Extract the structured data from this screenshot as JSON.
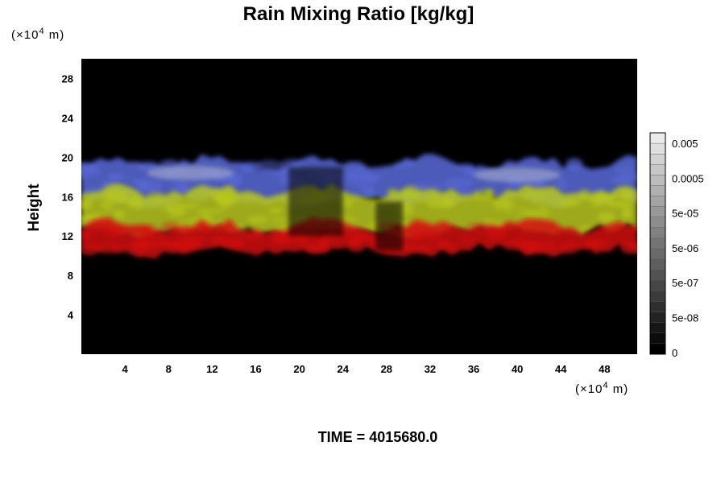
{
  "chart_data": {
    "type": "heatmap",
    "title": "Rain Mixing Ratio [kg/kg]",
    "ylabel": "Height",
    "x_unit": "(×10",
    "x_unit_exp": "4",
    "x_unit_tail": " m)",
    "y_unit": "(×10",
    "y_unit_exp": "4",
    "y_unit_tail": " m)",
    "xlim": [
      0,
      51
    ],
    "ylim": [
      0,
      30
    ],
    "x_ticks": [
      4,
      8,
      12,
      16,
      20,
      24,
      28,
      32,
      36,
      40,
      44,
      48
    ],
    "y_ticks": [
      4,
      8,
      12,
      16,
      20,
      24,
      28
    ],
    "colorbar": {
      "levels": 21,
      "labels": [
        "0.005",
        "0.0005",
        "5e-05",
        "5e-06",
        "5e-07",
        "5e-08",
        "0"
      ]
    },
    "layers": [
      {
        "name": "blue",
        "color": "#5a6ad8",
        "y_range": [
          15.5,
          19.5
        ]
      },
      {
        "name": "yellow-green",
        "color": "#b8c81e",
        "y_range": [
          12.5,
          16.5
        ]
      },
      {
        "name": "red",
        "color": "#d21010",
        "y_range": [
          10.5,
          13
        ]
      }
    ],
    "background_color": "#000000",
    "footer": "TIME = 4015680.0"
  }
}
